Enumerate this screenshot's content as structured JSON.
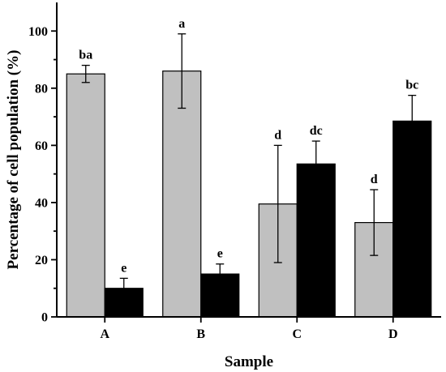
{
  "chart_data": {
    "type": "bar",
    "categories": [
      "A",
      "B",
      "C",
      "D"
    ],
    "xlabel": "Sample",
    "ylabel": "Percentage of cell population (%)",
    "ylim": [
      0,
      110
    ],
    "yticks": [
      0,
      20,
      40,
      60,
      80,
      100
    ],
    "grid": false,
    "series": [
      {
        "color": "#c0c0c0",
        "values": [
          85,
          86,
          39.5,
          33
        ],
        "errors": [
          3,
          13,
          20.5,
          11.5
        ],
        "labels": [
          "ba",
          "a",
          "d",
          "d"
        ]
      },
      {
        "color": "#000000",
        "values": [
          10,
          15,
          53.5,
          68.5
        ],
        "errors": [
          3.5,
          3.5,
          8,
          9
        ],
        "labels": [
          "e",
          "e",
          "dc",
          "bc"
        ]
      }
    ]
  }
}
